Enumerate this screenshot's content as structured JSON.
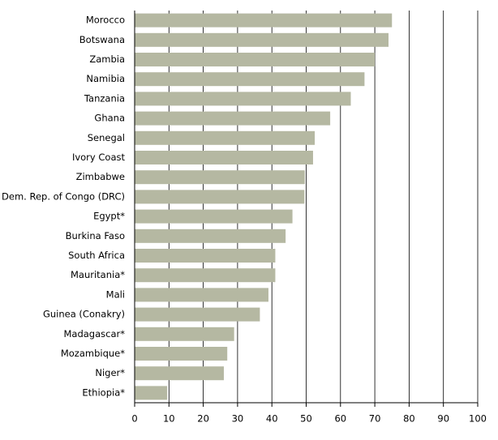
{
  "chart_data": {
    "type": "hbar",
    "categories": [
      "Morocco",
      "Botswana",
      "Zambia",
      "Namibia",
      "Tanzania",
      "Ghana",
      "Senegal",
      "Ivory Coast",
      "Zimbabwe",
      "Dem. Rep. of Congo (DRC)",
      "Egypt*",
      "Burkina Faso",
      "South Africa",
      "Mauritania*",
      "Mali",
      "Guinea (Conakry)",
      "Madagascar*",
      "Mozambique*",
      "Niger*",
      "Ethiopia*"
    ],
    "values": [
      75,
      74,
      70,
      67,
      63,
      57,
      52.5,
      52,
      49.6,
      49.5,
      46,
      44,
      41,
      41,
      39,
      36.5,
      29,
      27,
      26,
      9.5
    ],
    "color": "#b5b8a2",
    "xlim": [
      0,
      100
    ],
    "xticks": [
      0,
      10,
      20,
      30,
      40,
      50,
      60,
      70,
      80,
      90,
      100
    ],
    "grid": true
  }
}
